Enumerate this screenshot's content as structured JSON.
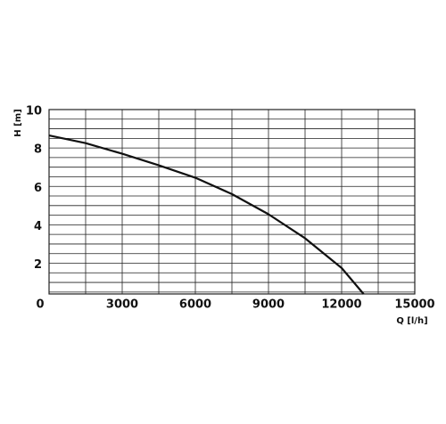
{
  "chart_data": {
    "type": "line",
    "x_label": "Q [l/h]",
    "y_label": "H [m]",
    "x": [
      0,
      1500,
      3000,
      4500,
      6000,
      7500,
      9000,
      10500,
      12000,
      12900
    ],
    "series": [
      {
        "color": "#111111",
        "values": [
          8.65,
          8.25,
          7.7,
          7.1,
          6.45,
          5.6,
          4.55,
          3.3,
          1.75,
          0.4
        ]
      }
    ],
    "xlim": [
      0,
      15000
    ],
    "xticks": [
      0,
      3000,
      6000,
      9000,
      12000,
      15000
    ],
    "x_minor_ticks": [
      1500,
      4500,
      7500,
      10500,
      13500
    ],
    "ylim": [
      0.4,
      10
    ],
    "yticks": [
      2,
      4,
      6,
      8,
      10
    ],
    "y_minor_ticks": [
      0.5,
      1,
      1.5,
      2.5,
      3,
      3.5,
      4.5,
      5,
      5.5,
      6.5,
      7,
      7.5,
      8.5,
      9,
      9.5
    ],
    "grid": true
  }
}
